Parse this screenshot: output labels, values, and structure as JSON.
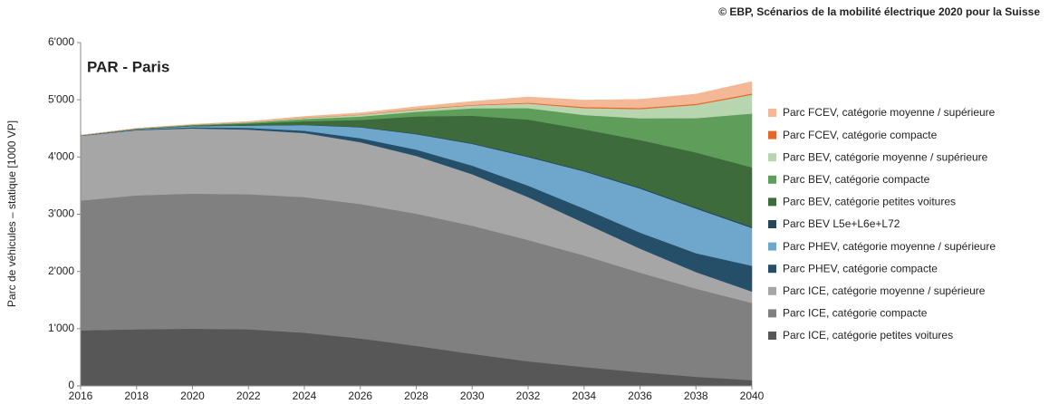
{
  "chart_data": {
    "type": "stacked-area",
    "title": "PAR - Paris",
    "source": "© EBP, Scénarios de la mobilité électrique 2020 pour la Suisse",
    "y_label": "Parc de véhicules – statique [1000 VP]",
    "x": [
      2016,
      2018,
      2020,
      2022,
      2024,
      2026,
      2028,
      2030,
      2032,
      2034,
      2036,
      2038,
      2040
    ],
    "xlim": [
      2016,
      2040
    ],
    "xticks": [
      2016,
      2018,
      2020,
      2022,
      2024,
      2026,
      2028,
      2030,
      2032,
      2034,
      2036,
      2038,
      2040
    ],
    "ylim": [
      0,
      6000
    ],
    "yticks": [
      0,
      {
        "value": 1000,
        "label": "1'000"
      },
      {
        "value": 2000,
        "label": "2'000"
      },
      {
        "value": 3000,
        "label": "3'000"
      },
      {
        "value": 4000,
        "label": "4'000"
      },
      {
        "value": 5000,
        "label": "5'000"
      },
      {
        "value": 6000,
        "label": "6'000"
      }
    ],
    "series": [
      {
        "name": "Parc FCEV, catégorie moyenne / supérieure",
        "color": "#f4b896",
        "values": [
          0,
          0,
          5,
          10,
          20,
          30,
          40,
          60,
          100,
          120,
          150,
          170,
          210
        ]
      },
      {
        "name": "Parc FCEV, catégorie compacte",
        "color": "#e3692a",
        "values": [
          0,
          0,
          0,
          0,
          5,
          5,
          10,
          10,
          15,
          20,
          20,
          20,
          20
        ]
      },
      {
        "name": "Parc BEV, catégorie moyenne / supérieure",
        "color": "#b7d6b0",
        "values": [
          0,
          2,
          5,
          10,
          20,
          30,
          40,
          50,
          80,
          120,
          160,
          230,
          330
        ]
      },
      {
        "name": "Parc BEV, catégorie compacte",
        "color": "#5f9e5a",
        "values": [
          1,
          3,
          10,
          20,
          40,
          60,
          80,
          130,
          200,
          250,
          380,
          600,
          940
        ]
      },
      {
        "name": "Parc BEV, catégorie petites voitures",
        "color": "#3d6b3b",
        "values": [
          2,
          5,
          10,
          30,
          60,
          120,
          300,
          480,
          640,
          720,
          830,
          960,
          1040
        ]
      },
      {
        "name": "Parc BEV L5e+L6e+L72",
        "color": "#24475a",
        "values": [
          0,
          0,
          2,
          3,
          5,
          8,
          10,
          12,
          15,
          15,
          18,
          20,
          20
        ]
      },
      {
        "name": "Parc PHEV, catégorie moyenne / supérieure",
        "color": "#6fa7cc",
        "values": [
          3,
          10,
          20,
          40,
          100,
          190,
          270,
          380,
          500,
          650,
          770,
          780,
          660
        ]
      },
      {
        "name": "Parc PHEV, catégorie compacte",
        "color": "#254f68",
        "values": [
          5,
          10,
          20,
          30,
          40,
          70,
          110,
          150,
          200,
          250,
          280,
          330,
          450
        ]
      },
      {
        "name": "Parc ICE, catégorie moyenne / supérieure",
        "color": "#a6a6a6",
        "values": [
          1130,
          1140,
          1140,
          1130,
          1120,
          1080,
          1010,
          900,
          750,
          570,
          420,
          290,
          200
        ]
      },
      {
        "name": "Parc ICE, catégorie compacte",
        "color": "#808080",
        "values": [
          2270,
          2340,
          2360,
          2360,
          2370,
          2350,
          2310,
          2240,
          2120,
          1950,
          1740,
          1540,
          1350
        ]
      },
      {
        "name": "Parc ICE, catégorie petites voitures",
        "color": "#575757",
        "values": [
          970,
          990,
          1000,
          990,
          930,
          830,
          700,
          560,
          430,
          330,
          240,
          160,
          100
        ]
      }
    ]
  }
}
